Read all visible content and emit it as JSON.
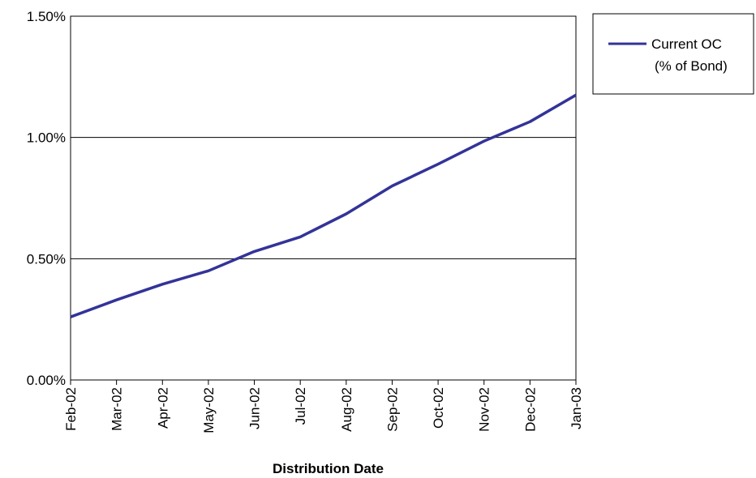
{
  "chart_data": {
    "type": "line",
    "title": "",
    "xlabel": "Distribution Date",
    "ylabel": "",
    "categories": [
      "Feb-02",
      "Mar-02",
      "Apr-02",
      "May-02",
      "Jun-02",
      "Jul-02",
      "Aug-02",
      "Sep-02",
      "Oct-02",
      "Nov-02",
      "Dec-02",
      "Jan-03"
    ],
    "series": [
      {
        "name": "Current OC (% of Bond)",
        "name_lines": [
          "Current OC",
          "(% of Bond)"
        ],
        "color": "#333399",
        "values": [
          0.26,
          0.33,
          0.395,
          0.45,
          0.53,
          0.59,
          0.685,
          0.8,
          0.89,
          0.985,
          1.065,
          1.175
        ]
      }
    ],
    "ylim": [
      0,
      1.5
    ],
    "yticks": [
      {
        "value": 0,
        "label": "0.00%"
      },
      {
        "value": 0.5,
        "label": "0.50%"
      },
      {
        "value": 1.0,
        "label": "1.00%"
      },
      {
        "value": 1.5,
        "label": "1.50%"
      }
    ],
    "grid": "horizontal",
    "legend_position": "right"
  }
}
